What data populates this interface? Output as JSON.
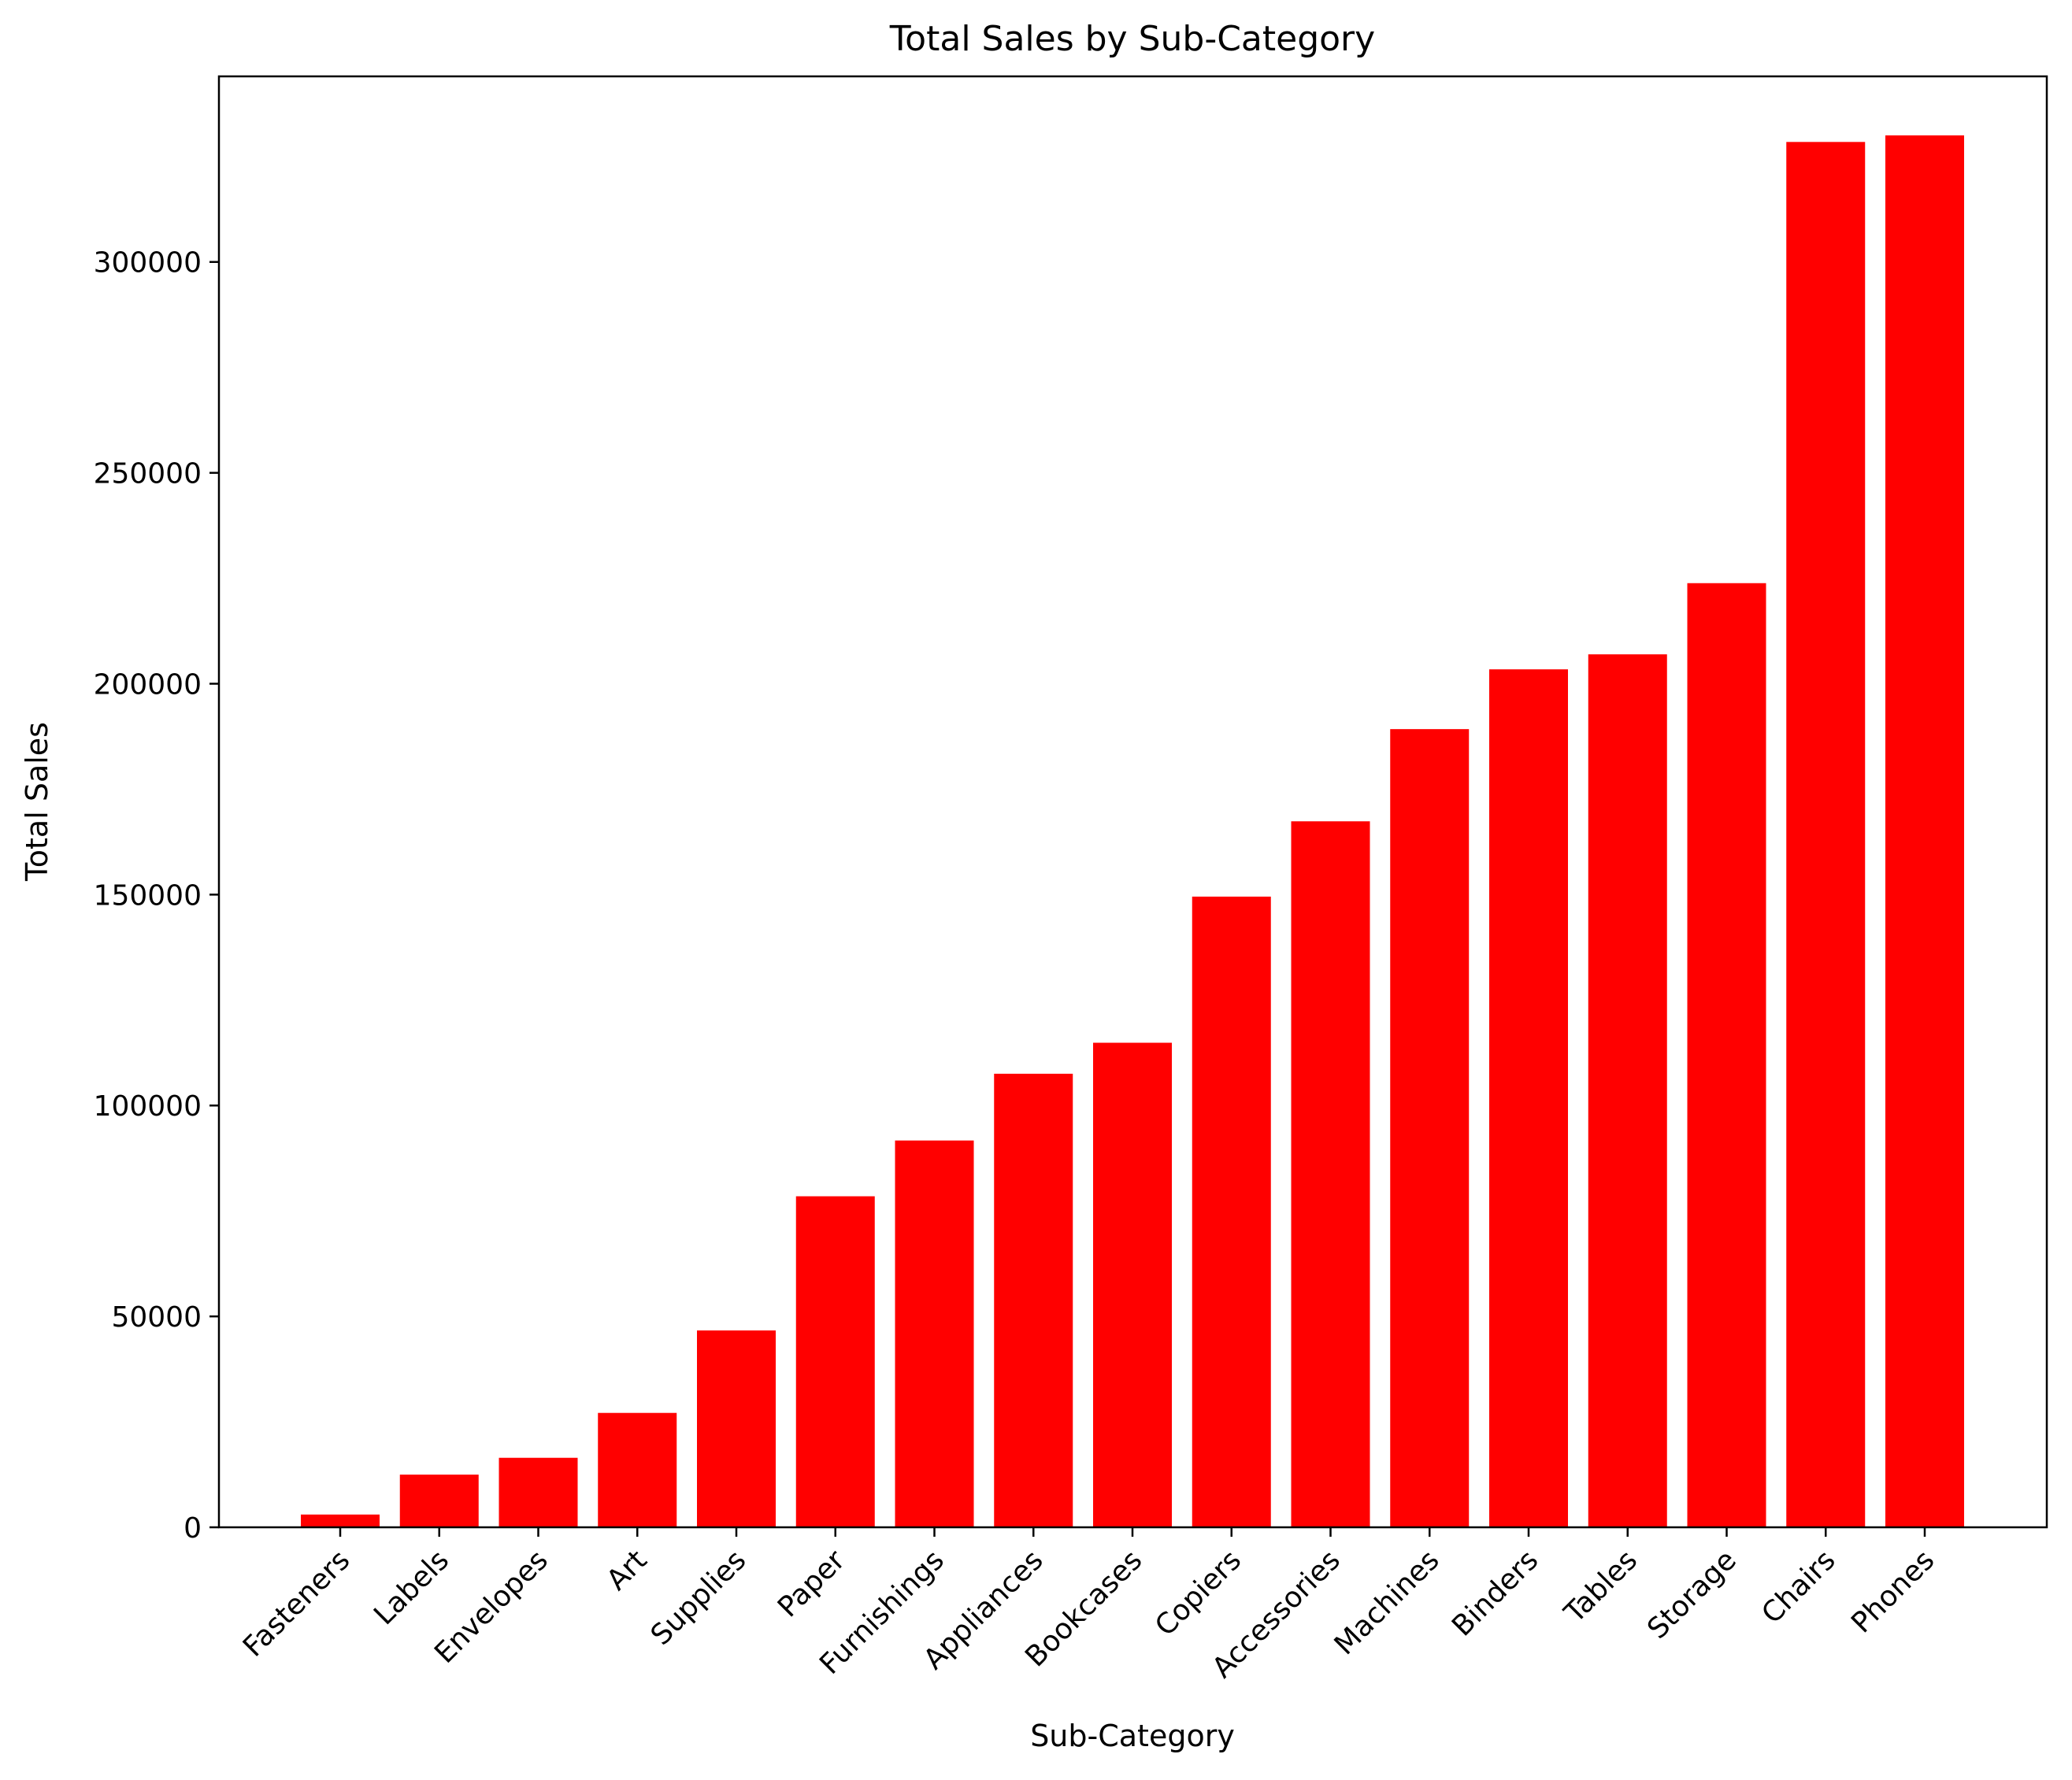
{
  "chart_data": {
    "type": "bar",
    "title": "Total Sales by Sub-Category",
    "xlabel": "Sub-Category",
    "ylabel": "Total Sales",
    "categories": [
      "Fasteners",
      "Labels",
      "Envelopes",
      "Art",
      "Supplies",
      "Paper",
      "Furnishings",
      "Appliances",
      "Bookcases",
      "Copiers",
      "Accessories",
      "Machines",
      "Binders",
      "Tables",
      "Storage",
      "Chairs",
      "Phones"
    ],
    "values": [
      3024,
      12486,
      16476,
      27119,
      46674,
      78479,
      91705,
      107532,
      114880,
      149528,
      167380,
      189239,
      203413,
      206966,
      223844,
      328449,
      330007
    ],
    "yticks": [
      0,
      50000,
      100000,
      150000,
      200000,
      250000,
      300000
    ],
    "ylim": [
      0,
      344000
    ],
    "grid": false,
    "bar_color": "#ff0000"
  }
}
